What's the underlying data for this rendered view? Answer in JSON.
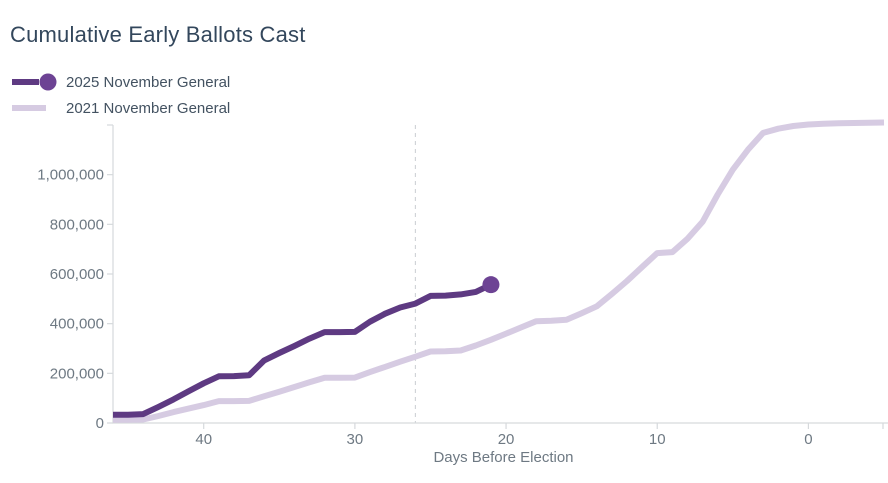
{
  "title": "Cumulative Early Ballots Cast",
  "colors": {
    "title_text": "#33475c",
    "legend_text": "#435261",
    "tick_text": "#6e7983",
    "axis_line": "#d6d9dc",
    "reference_line": "#c9cdd1",
    "series_2025": "#5e3a82",
    "series_2025_dot": "#6d4394",
    "series_2021": "#d6cbe2"
  },
  "chart_data": {
    "type": "line",
    "title": "Cumulative Early Ballots Cast",
    "xlabel": "Days Before Election",
    "ylabel": "",
    "grid": false,
    "legend_position": "top-left",
    "x_axis": {
      "reversed": true,
      "min": -5,
      "max": 46,
      "ticks": [
        40,
        30,
        20,
        10,
        0
      ]
    },
    "y_axis": {
      "min": 0,
      "max": 1200000,
      "ticks": [
        0,
        200000,
        400000,
        600000,
        800000,
        1000000
      ],
      "tick_labels": [
        "0",
        "200,000",
        "400,000",
        "600,000",
        "800,000",
        "1,000,000"
      ]
    },
    "reference_line": {
      "x_day": 26,
      "style": "dashed"
    },
    "series": [
      {
        "name": "2025 November General",
        "color": "#5e3a82",
        "dot_color": "#6d4394",
        "end_marker": "circle",
        "legend_marker": "line-dot",
        "points": [
          [
            46,
            33000
          ],
          [
            45,
            33000
          ],
          [
            44,
            36000
          ],
          [
            43,
            65000
          ],
          [
            42,
            95000
          ],
          [
            41,
            128000
          ],
          [
            40,
            160000
          ],
          [
            39,
            188000
          ],
          [
            38,
            189000
          ],
          [
            37,
            192000
          ],
          [
            36,
            252000
          ],
          [
            35,
            282000
          ],
          [
            34,
            310000
          ],
          [
            33,
            340000
          ],
          [
            32,
            366000
          ],
          [
            31,
            366000
          ],
          [
            30,
            367000
          ],
          [
            29,
            408000
          ],
          [
            28,
            440000
          ],
          [
            27,
            465000
          ],
          [
            26,
            481000
          ],
          [
            25,
            512000
          ],
          [
            24,
            513000
          ],
          [
            23,
            518000
          ],
          [
            22,
            528000
          ],
          [
            21,
            557000
          ]
        ]
      },
      {
        "name": "2021 November General",
        "color": "#d6cbe2",
        "end_marker": "none",
        "legend_marker": "line",
        "points": [
          [
            46,
            13000
          ],
          [
            45,
            13000
          ],
          [
            44,
            14000
          ],
          [
            43,
            28000
          ],
          [
            42,
            44000
          ],
          [
            41,
            58000
          ],
          [
            40,
            72000
          ],
          [
            39,
            88000
          ],
          [
            38,
            88000
          ],
          [
            37,
            89000
          ],
          [
            36,
            108000
          ],
          [
            35,
            126000
          ],
          [
            34,
            145000
          ],
          [
            33,
            164000
          ],
          [
            32,
            182000
          ],
          [
            31,
            182000
          ],
          [
            30,
            183000
          ],
          [
            29,
            205000
          ],
          [
            28,
            226000
          ],
          [
            27,
            247000
          ],
          [
            26,
            267000
          ],
          [
            25,
            288000
          ],
          [
            24,
            289000
          ],
          [
            23,
            292000
          ],
          [
            22,
            312000
          ],
          [
            21,
            335000
          ],
          [
            20,
            360000
          ],
          [
            19,
            385000
          ],
          [
            18,
            410000
          ],
          [
            17,
            412000
          ],
          [
            16,
            416000
          ],
          [
            15,
            442000
          ],
          [
            14,
            470000
          ],
          [
            13,
            520000
          ],
          [
            12,
            572000
          ],
          [
            11,
            628000
          ],
          [
            10,
            684000
          ],
          [
            9,
            688000
          ],
          [
            8,
            742000
          ],
          [
            7,
            810000
          ],
          [
            6,
            920000
          ],
          [
            5,
            1020000
          ],
          [
            4,
            1100000
          ],
          [
            3,
            1168000
          ],
          [
            2,
            1185000
          ],
          [
            1,
            1196000
          ],
          [
            0,
            1202000
          ],
          [
            -1,
            1205000
          ],
          [
            -2,
            1207000
          ],
          [
            -3,
            1208000
          ],
          [
            -4,
            1209000
          ],
          [
            -5,
            1210000
          ]
        ]
      }
    ]
  }
}
